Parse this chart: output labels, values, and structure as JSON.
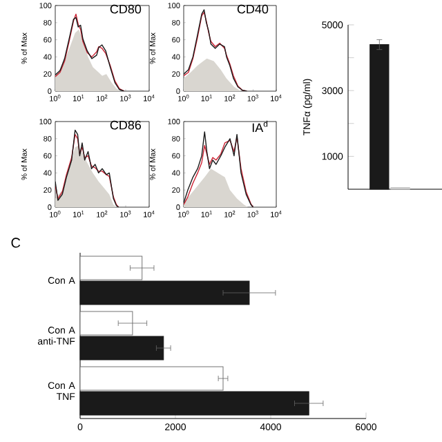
{
  "chart_data": [
    {
      "type": "line",
      "title": "CD80",
      "ylabel": "% of Max",
      "log": "x",
      "xlim": [
        1,
        10000
      ],
      "ylim": [
        0,
        100
      ],
      "xticks": [
        {
          "value": 1,
          "label": "10$^{0}$"
        },
        {
          "value": 10,
          "label": "10$^{1}$"
        },
        {
          "value": 100,
          "label": "10$^{2}$"
        },
        {
          "value": 1000,
          "label": "10$^{3}$"
        },
        {
          "value": 10000,
          "label": "10$^{4}$"
        }
      ],
      "yticks": [
        0,
        20,
        40,
        60,
        80,
        100
      ],
      "series": [
        {
          "type": "area",
          "color": "#d9d6d0",
          "x": [
            1,
            2,
            4,
            7,
            10,
            15,
            25,
            40,
            70,
            100,
            150,
            250,
            400,
            600
          ],
          "values": [
            18,
            30,
            50,
            68,
            72,
            60,
            40,
            28,
            22,
            18,
            20,
            10,
            3,
            0
          ]
        },
        {
          "color": "#cc2233",
          "x": [
            1,
            1.6,
            2.5,
            3.9,
            6,
            7.6,
            9.5,
            12,
            15,
            23,
            36,
            58,
            71,
            98,
            141,
            219,
            347,
            537,
            851
          ],
          "values": [
            17,
            22,
            35,
            58,
            82,
            90,
            78,
            72,
            58,
            45,
            40,
            46,
            52,
            50,
            44,
            30,
            12,
            3,
            0
          ]
        },
        {
          "color": "#1a1a1a",
          "x": [
            1,
            1.6,
            2.5,
            3.9,
            6,
            7.6,
            9.5,
            12,
            15,
            23,
            36,
            58,
            71,
            98,
            141,
            219,
            347,
            537,
            851
          ],
          "values": [
            19,
            24,
            38,
            61,
            84,
            86,
            75,
            77,
            61,
            47,
            38,
            42,
            51,
            54,
            47,
            28,
            10,
            2,
            0
          ]
        }
      ]
    },
    {
      "type": "line",
      "title": "CD40",
      "ylabel": "% of Max",
      "log": "x",
      "xlim": [
        1,
        10000
      ],
      "ylim": [
        0,
        100
      ],
      "xticks": [
        {
          "value": 1,
          "label": "10$^{0}$"
        },
        {
          "value": 10,
          "label": "10$^{1}$"
        },
        {
          "value": 100,
          "label": "10$^{2}$"
        },
        {
          "value": 1000,
          "label": "10$^{3}$"
        },
        {
          "value": 10000,
          "label": "10$^{4}$"
        }
      ],
      "yticks": [
        0,
        20,
        40,
        60,
        80,
        100
      ],
      "series": [
        {
          "type": "area",
          "color": "#d9d6d0",
          "x": [
            1,
            2,
            4,
            7,
            10,
            20,
            40,
            70,
            150,
            300
          ],
          "values": [
            15,
            22,
            30,
            35,
            38,
            35,
            25,
            15,
            5,
            0
          ]
        },
        {
          "color": "#cc2233",
          "x": [
            1,
            1.6,
            2.5,
            3.9,
            6,
            7.6,
            9.5,
            12,
            15,
            23,
            36,
            58,
            71,
            98,
            141,
            219,
            347,
            537
          ],
          "values": [
            18,
            22,
            38,
            62,
            88,
            92,
            82,
            68,
            58,
            52,
            56,
            50,
            42,
            32,
            18,
            6,
            1,
            0
          ]
        },
        {
          "color": "#1a1a1a",
          "x": [
            1,
            1.6,
            2.5,
            3.9,
            6,
            7.6,
            9.5,
            12,
            15,
            23,
            36,
            58,
            71,
            98,
            141,
            219,
            347,
            537
          ],
          "values": [
            20,
            25,
            40,
            65,
            90,
            95,
            80,
            70,
            55,
            50,
            55,
            52,
            40,
            30,
            15,
            5,
            1,
            0
          ]
        }
      ]
    },
    {
      "type": "line",
      "title": "CD86",
      "ylabel": "% of Max",
      "log": "x",
      "xlim": [
        1,
        10000
      ],
      "ylim": [
        0,
        100
      ],
      "xticks": [
        {
          "value": 1,
          "label": "10$^{0}$"
        },
        {
          "value": 10,
          "label": "10$^{1}$"
        },
        {
          "value": 100,
          "label": "10$^{2}$"
        },
        {
          "value": 1000,
          "label": "10$^{3}$"
        },
        {
          "value": 10000,
          "label": "10$^{4}$"
        }
      ],
      "yticks": [
        0,
        20,
        40,
        60,
        80,
        100
      ],
      "series": [
        {
          "type": "area",
          "color": "#d9d6d0",
          "x": [
            1,
            2,
            4,
            7,
            10,
            20,
            40,
            70,
            100,
            200,
            300,
            400
          ],
          "values": [
            10,
            20,
            45,
            70,
            72,
            55,
            40,
            30,
            25,
            15,
            3,
            0
          ]
        },
        {
          "color": "#cc2233",
          "x": [
            1,
            1.3,
            2,
            3,
            5,
            7,
            9,
            11,
            14,
            18,
            25,
            35,
            50,
            70,
            100,
            150,
            200,
            300,
            400,
            500
          ],
          "values": [
            25,
            10,
            18,
            38,
            58,
            85,
            80,
            62,
            70,
            58,
            60,
            48,
            46,
            42,
            42,
            38,
            36,
            12,
            3,
            0
          ]
        },
        {
          "color": "#1a1a1a",
          "x": [
            1,
            1.3,
            2,
            3,
            5,
            7,
            9,
            11,
            14,
            18,
            25,
            35,
            50,
            70,
            100,
            150,
            200,
            300,
            400,
            500
          ],
          "values": [
            30,
            8,
            15,
            35,
            55,
            90,
            85,
            60,
            75,
            55,
            65,
            45,
            50,
            40,
            45,
            38,
            40,
            10,
            2,
            0
          ]
        }
      ]
    },
    {
      "type": "line",
      "title": "IA$^{d}$",
      "ylabel": "% of Max",
      "log": "x",
      "xlim": [
        1,
        10000
      ],
      "ylim": [
        0,
        100
      ],
      "xticks": [
        {
          "value": 1,
          "label": "10$^{0}$"
        },
        {
          "value": 10,
          "label": "10$^{1}$"
        },
        {
          "value": 100,
          "label": "10$^{2}$"
        },
        {
          "value": 1000,
          "label": "10$^{3}$"
        },
        {
          "value": 10000,
          "label": "10$^{4}$"
        }
      ],
      "yticks": [
        0,
        20,
        40,
        60,
        80,
        100
      ],
      "series": [
        {
          "type": "area",
          "color": "#d9d6d0",
          "x": [
            1,
            2,
            4,
            8,
            15,
            30,
            60,
            100,
            200,
            400,
            600
          ],
          "values": [
            5,
            15,
            25,
            35,
            45,
            40,
            35,
            20,
            10,
            3,
            0
          ]
        },
        {
          "color": "#cc2233",
          "x": [
            1,
            1.5,
            2.5,
            4,
            6,
            8,
            10,
            13,
            18,
            25,
            40,
            60,
            100,
            150,
            200,
            300,
            500,
            800,
            1000
          ],
          "values": [
            3,
            12,
            28,
            40,
            52,
            72,
            62,
            50,
            58,
            55,
            62,
            75,
            78,
            65,
            82,
            45,
            18,
            4,
            0
          ]
        },
        {
          "color": "#1a1a1a",
          "x": [
            1,
            1.5,
            2.5,
            4,
            6,
            8,
            10,
            13,
            18,
            25,
            40,
            60,
            100,
            150,
            200,
            300,
            500,
            800,
            1000
          ],
          "values": [
            5,
            20,
            35,
            45,
            60,
            88,
            65,
            45,
            55,
            50,
            60,
            70,
            80,
            60,
            85,
            40,
            15,
            3,
            0
          ]
        }
      ]
    },
    {
      "type": "bar",
      "ylabel": "TNFα (pg/ml)",
      "categories": [
        null,
        null
      ],
      "values": [
        4400,
        50
      ],
      "colors": [
        "#1a1a1a",
        "#c8c8c8"
      ],
      "errors": [
        150,
        null
      ],
      "ylim": [
        0,
        5000
      ],
      "yticks": [
        1000,
        {
          "value": 2000,
          "label": null
        },
        3000,
        {
          "value": 4000,
          "label": null
        },
        5000
      ],
      "tick_labels": "y"
    },
    {
      "type": "bar",
      "orientation": "horizontal",
      "categories": [
        "Con A",
        "Con A anti-TNF",
        "Con A TNF"
      ],
      "xlim": [
        0,
        6000
      ],
      "xticks": [
        0,
        2000,
        4000,
        6000
      ],
      "annotations": [
        "C"
      ],
      "series": [
        {
          "color": "#ffffff",
          "values": [
            1300,
            1100,
            3000
          ],
          "errors": [
            250,
            300,
            100
          ]
        },
        {
          "color": "#1a1a1a",
          "values": [
            3550,
            1750,
            4800
          ],
          "errors": [
            550,
            150,
            300
          ]
        }
      ]
    }
  ]
}
